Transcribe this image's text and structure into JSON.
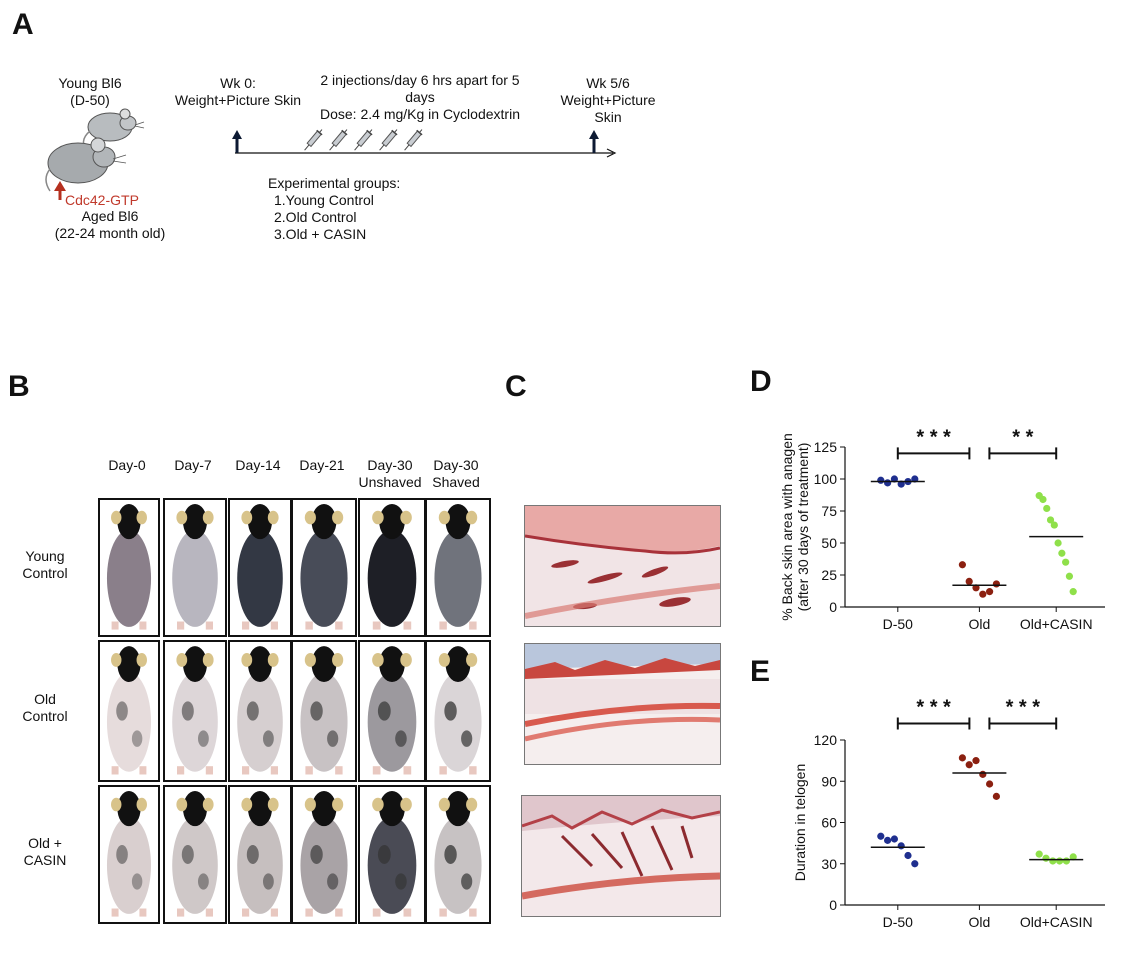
{
  "panelA": {
    "letter": "A",
    "young_label_1": "Young Bl6",
    "young_label_2": "(D-50)",
    "marker": "Cdc42-GTP",
    "aged_label_1": "Aged Bl6",
    "aged_label_2": "(22-24 month old)",
    "wk0_1": "Wk 0:",
    "wk0_2": "Weight+Picture Skin",
    "inj_1": "2 injections/day 6 hrs apart for 5",
    "inj_2": "days",
    "dose": "Dose: 2.4 mg/Kg in Cyclodextrin",
    "wk56_1": "Wk 5/6",
    "wk56_2": "Weight+Picture",
    "wk56_3": "Skin",
    "groups_title": "Experimental groups:",
    "groups": [
      "1.Young Control",
      "2.Old Control",
      "3.Old + CASIN"
    ]
  },
  "panelB": {
    "letter": "B",
    "columns": [
      "Day-0",
      "Day-7",
      "Day-14",
      "Day-21",
      "Day-30",
      "Day-30"
    ],
    "columns_sub": [
      "",
      "",
      "",
      "",
      "Unshaved",
      "Shaved"
    ],
    "rows_l1": [
      "Young",
      "Old",
      "Old +"
    ],
    "rows_l2": [
      "Control",
      "Control",
      "CASIN"
    ]
  },
  "panelC": {
    "letter": "C"
  },
  "panelD": {
    "letter": "D"
  },
  "panelE": {
    "letter": "E"
  },
  "chart_data": [
    {
      "type": "scatter",
      "panel": "D",
      "ylabel_1": "% Back skin area with anagen",
      "ylabel_2": "(after 30 days of treatment)",
      "categories": [
        "D-50",
        "Old",
        "Old+CASIN"
      ],
      "ylim": [
        0,
        125
      ],
      "yticks": [
        0,
        25,
        50,
        75,
        100,
        125
      ],
      "colors": [
        "#1f2f8f",
        "#8b2010",
        "#8fe04a"
      ],
      "points": [
        [
          99,
          97,
          100,
          96,
          98,
          100
        ],
        [
          33,
          20,
          15,
          10,
          12,
          18
        ],
        [
          87,
          84,
          77,
          68,
          64,
          50,
          42,
          35,
          24,
          12
        ]
      ],
      "means": [
        98,
        17,
        55
      ],
      "significance": [
        {
          "from": 0,
          "to": 1,
          "label": "* * *",
          "y": 120
        },
        {
          "from": 1,
          "to": 2,
          "label": "* *",
          "y": 120
        }
      ]
    },
    {
      "type": "scatter",
      "panel": "E",
      "ylabel_1": "Duration in telogen",
      "categories": [
        "D-50",
        "Old",
        "Old+CASIN"
      ],
      "ylim": [
        0,
        120
      ],
      "yticks": [
        0,
        30,
        60,
        90,
        120
      ],
      "colors": [
        "#1f2f8f",
        "#8b2010",
        "#8fe04a"
      ],
      "points": [
        [
          50,
          47,
          48,
          43,
          36,
          30
        ],
        [
          107,
          102,
          105,
          95,
          88,
          79
        ],
        [
          37,
          34,
          32,
          32,
          32,
          35
        ]
      ],
      "means": [
        42,
        96,
        33
      ],
      "significance": [
        {
          "from": 0,
          "to": 1,
          "label": "* * *",
          "y": 132
        },
        {
          "from": 1,
          "to": 2,
          "label": "* * *",
          "y": 132
        }
      ]
    }
  ]
}
